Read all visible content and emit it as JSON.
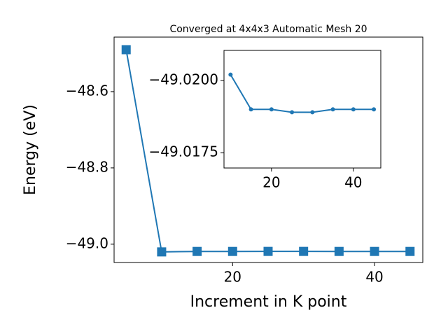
{
  "chart_data": [
    {
      "type": "line",
      "title": "Converged at 4x4x3 Automatic Mesh 20",
      "x_label": "Increment in K point",
      "y_label": "Energy (eV)",
      "x": [
        5,
        10,
        15,
        20,
        25,
        30,
        35,
        40,
        45
      ],
      "series": [
        {
          "color": "#1f77b4",
          "marker": "square",
          "values": [
            -48.49,
            -49.0202,
            -49.019,
            -49.019,
            -49.0189,
            -49.0189,
            -49.019,
            -49.019,
            -49.019
          ]
        }
      ],
      "xlim": [
        3.3,
        46.8
      ],
      "xticks": [
        20,
        40
      ],
      "ylim": [
        -49.048,
        -48.457
      ],
      "yticks": [
        {
          "value": -49.0,
          "label": "−49.0"
        },
        {
          "value": -48.8,
          "label": "−48.8"
        },
        {
          "value": -48.6,
          "label": "−48.6"
        }
      ]
    },
    {
      "type": "line",
      "x": [
        10,
        15,
        20,
        25,
        30,
        35,
        40,
        45
      ],
      "series": [
        {
          "color": "#1f77b4",
          "marker": "circle",
          "values": [
            -49.0202,
            -49.019,
            -49.019,
            -49.0189,
            -49.0189,
            -49.019,
            -49.019,
            -49.019
          ]
        }
      ],
      "xlim": [
        8.4,
        46.7
      ],
      "xticks": [
        20,
        40
      ],
      "ylim": [
        -49.01697,
        -49.02104
      ],
      "yticks": [
        {
          "value": -49.0175,
          "label": "−49.0175"
        },
        {
          "value": -49.02,
          "label": "−49.0200"
        }
      ]
    }
  ]
}
